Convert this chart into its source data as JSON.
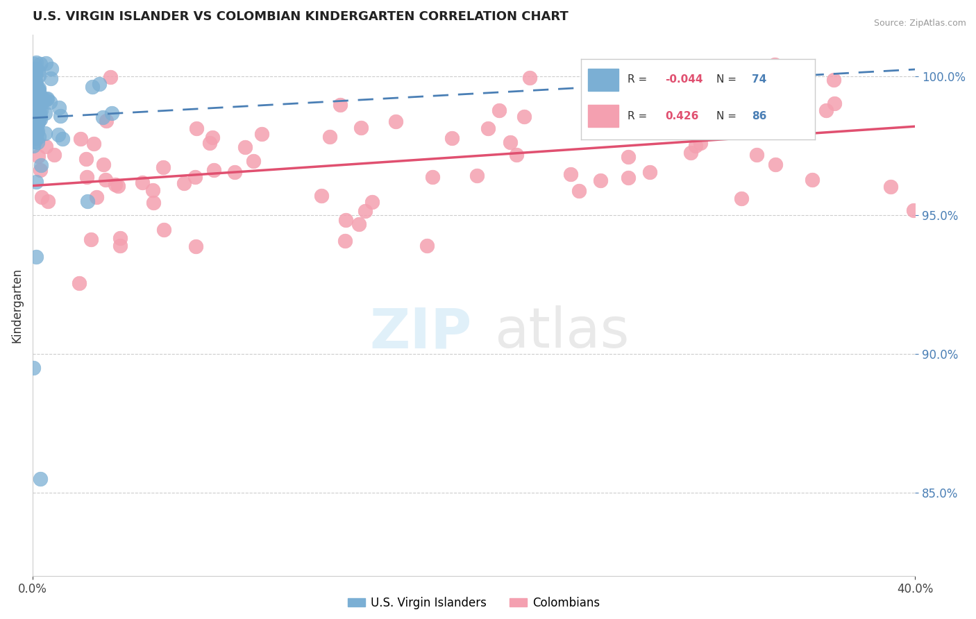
{
  "title": "U.S. VIRGIN ISLANDER VS COLOMBIAN KINDERGARTEN CORRELATION CHART",
  "source": "Source: ZipAtlas.com",
  "ylabel": "Kindergarten",
  "xlim": [
    0.0,
    40.0
  ],
  "ylim": [
    82.0,
    101.5
  ],
  "yticks": [
    85.0,
    90.0,
    95.0,
    100.0
  ],
  "xticks": [
    0.0,
    40.0
  ],
  "r_blue": -0.044,
  "n_blue": 74,
  "r_pink": 0.426,
  "n_pink": 86,
  "blue_color": "#7bafd4",
  "pink_color": "#f4a0b0",
  "blue_line_color": "#4a7fb5",
  "pink_line_color": "#e05070"
}
